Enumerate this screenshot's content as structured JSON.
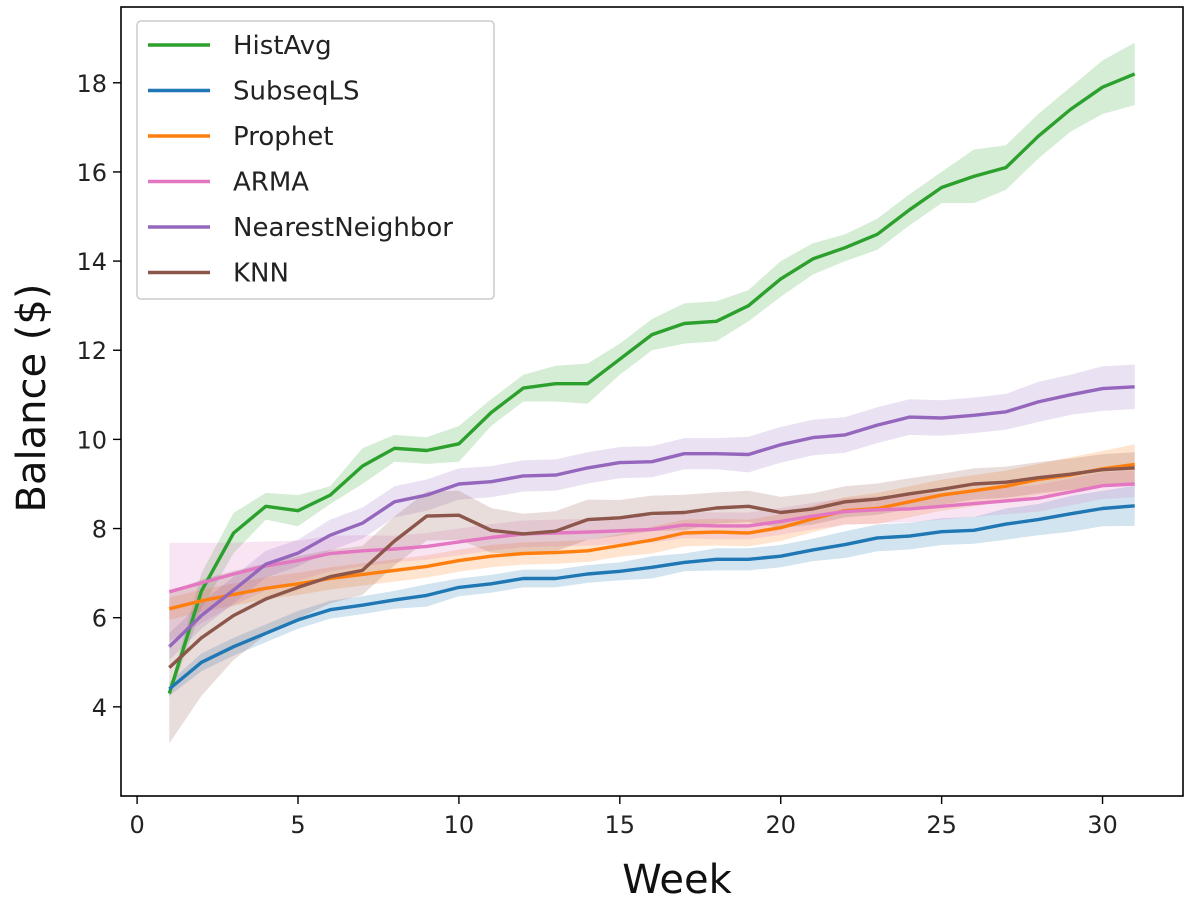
{
  "chart_data": {
    "type": "line",
    "title": "",
    "xlabel": "Week",
    "ylabel": "Balance ($)",
    "xlim": [
      -0.5,
      32.5
    ],
    "ylim": [
      2.0,
      19.7
    ],
    "xticks": [
      0,
      5,
      10,
      15,
      20,
      25,
      30
    ],
    "yticks": [
      4,
      6,
      8,
      10,
      12,
      14,
      16,
      18
    ],
    "grid": false,
    "legend_position": "top-left",
    "x": [
      1,
      2,
      3,
      4,
      5,
      6,
      7,
      8,
      9,
      10,
      11,
      12,
      13,
      14,
      15,
      16,
      17,
      18,
      19,
      20,
      21,
      22,
      23,
      24,
      25,
      26,
      27,
      28,
      29,
      30,
      31
    ],
    "series": [
      {
        "name": "HistAvg",
        "color": "#2ca02c",
        "values": [
          4.3,
          6.6,
          7.9,
          8.5,
          8.4,
          8.75,
          9.4,
          9.8,
          9.75,
          9.9,
          10.6,
          11.15,
          11.25,
          11.25,
          11.8,
          12.35,
          12.6,
          12.65,
          13.0,
          13.6,
          14.05,
          14.3,
          14.6,
          15.15,
          15.65,
          15.9,
          16.1,
          16.8,
          17.4,
          17.9,
          18.2
        ],
        "band": [
          0.1,
          0.4,
          0.45,
          0.3,
          0.35,
          0.2,
          0.4,
          0.3,
          0.3,
          0.4,
          0.3,
          0.3,
          0.4,
          0.45,
          0.35,
          0.35,
          0.45,
          0.45,
          0.35,
          0.4,
          0.35,
          0.3,
          0.35,
          0.35,
          0.35,
          0.6,
          0.5,
          0.5,
          0.5,
          0.6,
          0.7
        ]
      },
      {
        "name": "SubseqLS",
        "color": "#1f77b4",
        "values": [
          4.4,
          5.0,
          5.35,
          5.65,
          5.95,
          6.18,
          6.28,
          6.4,
          6.5,
          6.68,
          6.76,
          6.88,
          6.88,
          6.98,
          7.04,
          7.13,
          7.24,
          7.31,
          7.31,
          7.38,
          7.52,
          7.64,
          7.79,
          7.83,
          7.93,
          7.96,
          8.1,
          8.2,
          8.33,
          8.45,
          8.51
        ],
        "band": [
          0.15,
          0.2,
          0.2,
          0.2,
          0.2,
          0.2,
          0.2,
          0.2,
          0.25,
          0.2,
          0.2,
          0.2,
          0.2,
          0.2,
          0.2,
          0.25,
          0.2,
          0.25,
          0.25,
          0.25,
          0.25,
          0.3,
          0.3,
          0.3,
          0.3,
          0.3,
          0.35,
          0.35,
          0.4,
          0.4,
          0.45
        ]
      },
      {
        "name": "Prophet",
        "color": "#ff7f0e",
        "values": [
          6.2,
          6.38,
          6.52,
          6.66,
          6.76,
          6.88,
          6.97,
          7.06,
          7.15,
          7.28,
          7.38,
          7.44,
          7.46,
          7.5,
          7.62,
          7.74,
          7.9,
          7.92,
          7.9,
          8.02,
          8.22,
          8.4,
          8.45,
          8.6,
          8.75,
          8.85,
          8.95,
          9.1,
          9.2,
          9.34,
          9.44
        ],
        "band": [
          0.25,
          0.25,
          0.25,
          0.25,
          0.25,
          0.25,
          0.25,
          0.25,
          0.25,
          0.25,
          0.25,
          0.25,
          0.25,
          0.25,
          0.25,
          0.3,
          0.3,
          0.3,
          0.3,
          0.3,
          0.3,
          0.3,
          0.35,
          0.35,
          0.35,
          0.35,
          0.35,
          0.35,
          0.4,
          0.4,
          0.45
        ]
      },
      {
        "name": "ARMA",
        "color": "#e377c2",
        "values": [
          6.58,
          6.78,
          6.98,
          7.16,
          7.28,
          7.44,
          7.5,
          7.54,
          7.6,
          7.7,
          7.8,
          7.88,
          7.9,
          7.92,
          7.95,
          7.98,
          8.08,
          8.06,
          8.06,
          8.16,
          8.28,
          8.38,
          8.42,
          8.44,
          8.5,
          8.56,
          8.62,
          8.68,
          8.82,
          8.96,
          9.0
        ],
        "band": [
          1.1,
          0.9,
          0.7,
          0.55,
          0.45,
          0.4,
          0.35,
          0.3,
          0.3,
          0.3,
          0.3,
          0.3,
          0.3,
          0.3,
          0.3,
          0.3,
          0.3,
          0.3,
          0.3,
          0.3,
          0.3,
          0.3,
          0.3,
          0.3,
          0.3,
          0.3,
          0.3,
          0.3,
          0.3,
          0.3,
          0.3
        ]
      },
      {
        "name": "NearestNeighbor",
        "color": "#9467bd",
        "values": [
          5.35,
          6.05,
          6.62,
          7.2,
          7.45,
          7.85,
          8.12,
          8.6,
          8.75,
          9.0,
          9.05,
          9.18,
          9.2,
          9.36,
          9.48,
          9.5,
          9.68,
          9.68,
          9.66,
          9.88,
          10.04,
          10.1,
          10.32,
          10.5,
          10.48,
          10.54,
          10.62,
          10.84,
          11.0,
          11.14,
          11.18
        ],
        "band": [
          0.3,
          0.3,
          0.3,
          0.3,
          0.3,
          0.35,
          0.35,
          0.35,
          0.35,
          0.35,
          0.35,
          0.35,
          0.35,
          0.35,
          0.35,
          0.35,
          0.35,
          0.35,
          0.4,
          0.4,
          0.4,
          0.4,
          0.4,
          0.4,
          0.4,
          0.4,
          0.4,
          0.45,
          0.45,
          0.5,
          0.5
        ]
      },
      {
        "name": "KNN",
        "color": "#8c564b",
        "values": [
          4.88,
          5.55,
          6.05,
          6.42,
          6.68,
          6.92,
          7.06,
          7.72,
          8.28,
          8.3,
          7.96,
          7.88,
          7.94,
          8.2,
          8.24,
          8.34,
          8.36,
          8.46,
          8.5,
          8.36,
          8.44,
          8.6,
          8.66,
          8.78,
          8.88,
          9.0,
          9.04,
          9.14,
          9.22,
          9.32,
          9.36
        ],
        "band": [
          1.7,
          1.3,
          1.0,
          0.8,
          0.7,
          0.6,
          0.55,
          0.55,
          0.55,
          0.55,
          0.5,
          0.45,
          0.45,
          0.45,
          0.4,
          0.4,
          0.4,
          0.35,
          0.35,
          0.35,
          0.35,
          0.35,
          0.35,
          0.35,
          0.35,
          0.35,
          0.35,
          0.35,
          0.35,
          0.35,
          0.35
        ]
      }
    ]
  }
}
